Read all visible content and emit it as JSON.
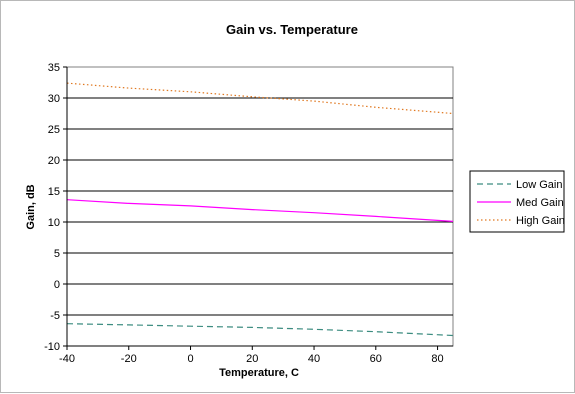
{
  "chart_data": {
    "type": "line",
    "title": "Gain vs. Temperature",
    "xlabel": "Temperature, C",
    "ylabel": "Gain, dB",
    "xlim": [
      -40,
      85
    ],
    "ylim": [
      -10,
      35
    ],
    "xticks": [
      -40,
      -20,
      0,
      20,
      40,
      60,
      80
    ],
    "yticks": [
      -10,
      -5,
      0,
      5,
      10,
      15,
      20,
      25,
      30,
      35
    ],
    "grid": "horizontal",
    "legend_position": "right",
    "series": [
      {
        "name": "Low Gain",
        "color": "#3c8c80",
        "dash": "dashed",
        "x": [
          -40,
          -20,
          0,
          20,
          40,
          60,
          85
        ],
        "y": [
          -6.4,
          -6.6,
          -6.8,
          -7.0,
          -7.3,
          -7.7,
          -8.3
        ]
      },
      {
        "name": "Med Gain",
        "color": "#ff00ff",
        "dash": "solid",
        "x": [
          -40,
          -20,
          0,
          20,
          40,
          60,
          85
        ],
        "y": [
          13.6,
          13.0,
          12.6,
          12.0,
          11.5,
          10.9,
          10.1
        ]
      },
      {
        "name": "High Gain",
        "color": "#e07820",
        "dash": "dotted",
        "x": [
          -40,
          -20,
          0,
          20,
          40,
          60,
          85
        ],
        "y": [
          32.4,
          31.6,
          31.0,
          30.2,
          29.5,
          28.5,
          27.5
        ]
      }
    ]
  }
}
